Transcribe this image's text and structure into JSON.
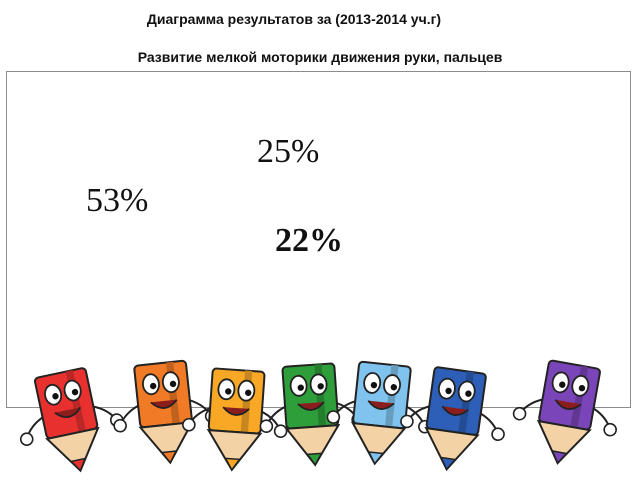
{
  "chart_data": {
    "type": "pie",
    "title": "Диаграмма результатов за (2013-2014 уч.г)",
    "subtitle": "Развитие мелкой моторики  движения руки, пальцев",
    "values": [
      53,
      25,
      22
    ],
    "data_labels": [
      "53%",
      "25%",
      "22%"
    ],
    "colors": [
      "#ffffff",
      "#ffffff",
      "#ffffff"
    ]
  },
  "decoration": {
    "icon": "cartoon-pencils-icon",
    "pencil_colors": [
      "#e8312f",
      "#f07a25",
      "#f9a825",
      "#2e9e3a",
      "#7fc3ee",
      "#2d5fb8",
      "#7a45b8"
    ]
  }
}
